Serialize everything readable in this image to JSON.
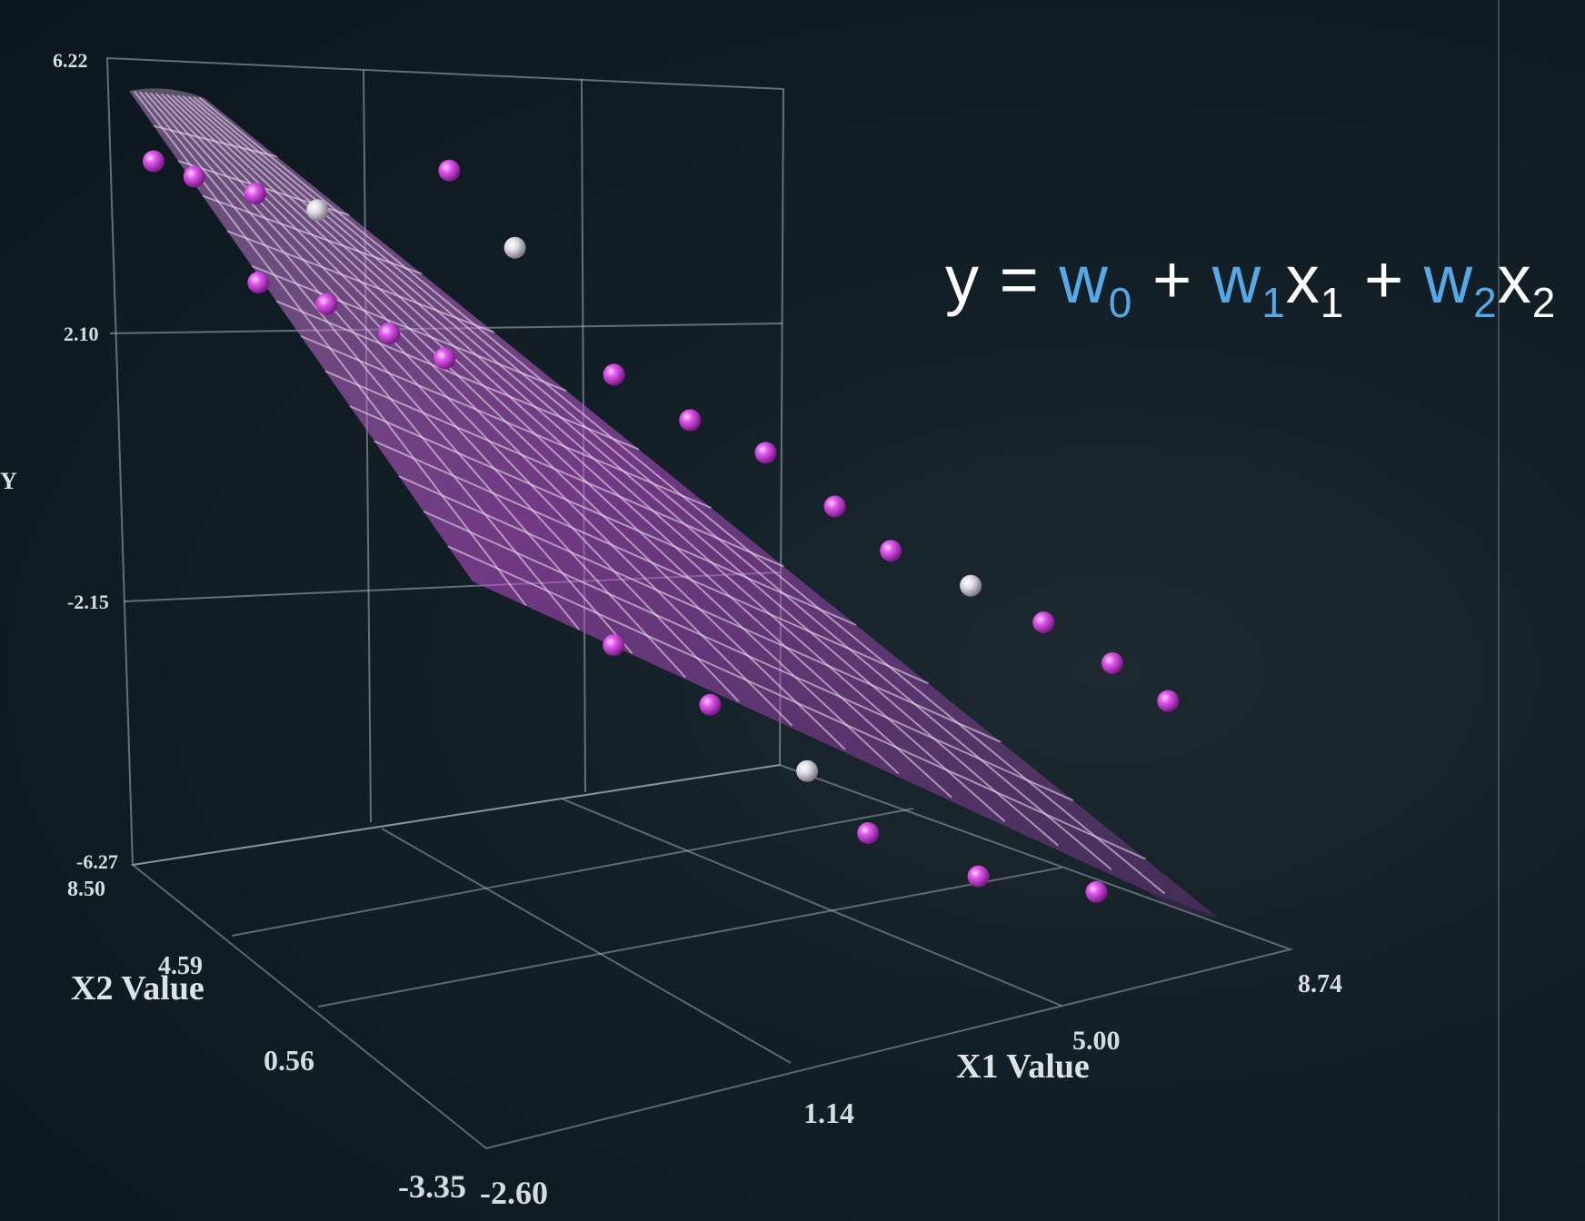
{
  "chart_data": {
    "type": "scatter",
    "title": "",
    "xlabel": "X1 Value",
    "ylabel": "Y",
    "zlabel": "X2 Value",
    "x1_ticks": [
      "-2.60",
      "1.14",
      "5.00",
      "8.74"
    ],
    "x2_ticks": [
      "-3.35",
      "0.56",
      "4.59",
      "8.50"
    ],
    "y_ticks": [
      "-6.27",
      "-2.15",
      "2.10",
      "6.22"
    ],
    "x1_range": [
      -2.6,
      8.74
    ],
    "x2_range": [
      -3.35,
      8.5
    ],
    "y_range": [
      -6.27,
      6.22
    ],
    "grid": true,
    "surface": {
      "type": "regression-plane",
      "color": "#c04ad0"
    },
    "colors": {
      "point": "#d84ce6",
      "point_highlight": "#e9e4ee",
      "axis_tick_blue": "#56a8e6",
      "background": "#0e1a22"
    },
    "points": [
      {
        "x1": -2.2,
        "x2": 8.0,
        "y": 4.7
      },
      {
        "x1": -1.8,
        "x2": 7.6,
        "y": 4.5
      },
      {
        "x1": -1.2,
        "x2": 7.0,
        "y": 4.3
      },
      {
        "x1": -0.5,
        "x2": 6.6,
        "y": 4.0
      },
      {
        "x1": -1.6,
        "x2": 6.0,
        "y": 3.4
      },
      {
        "x1": -0.9,
        "x2": 5.4,
        "y": 3.1
      },
      {
        "x1": -0.2,
        "x2": 5.0,
        "y": 2.6
      },
      {
        "x1": 0.4,
        "x2": 4.6,
        "y": 2.2
      },
      {
        "x1": 1.2,
        "x2": 6.2,
        "y": 4.3
      },
      {
        "x1": 1.8,
        "x2": 5.5,
        "y": 3.2
      },
      {
        "x1": 2.6,
        "x2": 4.2,
        "y": 1.5
      },
      {
        "x1": 3.4,
        "x2": 3.6,
        "y": 0.8
      },
      {
        "x1": 4.2,
        "x2": 3.0,
        "y": 0.3
      },
      {
        "x1": 4.9,
        "x2": 2.4,
        "y": -0.5
      },
      {
        "x1": 5.5,
        "x2": 2.0,
        "y": -1.2
      },
      {
        "x1": 6.4,
        "x2": 1.5,
        "y": -1.8
      },
      {
        "x1": 7.2,
        "x2": 1.0,
        "y": -2.4
      },
      {
        "x1": 7.9,
        "x2": 0.4,
        "y": -3.0
      },
      {
        "x1": 8.5,
        "x2": 0.0,
        "y": -3.6
      },
      {
        "x1": 1.5,
        "x2": 1.8,
        "y": -1.5
      },
      {
        "x1": 2.5,
        "x2": 1.0,
        "y": -2.4
      },
      {
        "x1": 3.5,
        "x2": 0.2,
        "y": -3.4
      },
      {
        "x1": 4.0,
        "x2": -0.6,
        "y": -4.2
      },
      {
        "x1": 5.2,
        "x2": -1.4,
        "y": -4.9
      },
      {
        "x1": 6.6,
        "x2": -2.0,
        "y": -5.3
      }
    ]
  },
  "equation": {
    "y": "y",
    "eq": "=",
    "w": "w",
    "x": "x",
    "plus": "+",
    "sub0": "0",
    "sub1": "1",
    "sub2": "2"
  }
}
